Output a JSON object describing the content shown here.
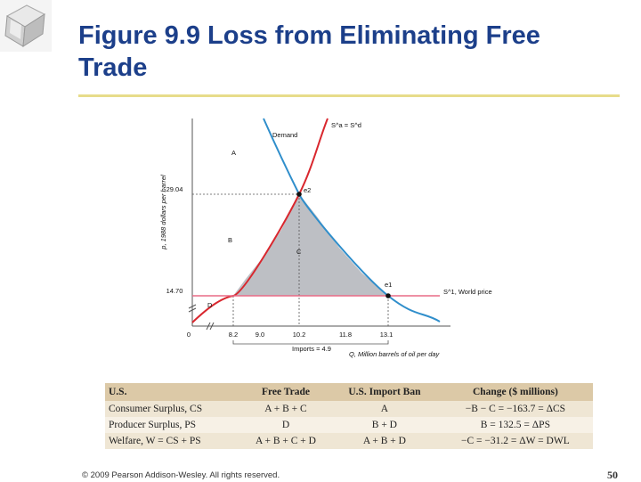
{
  "slide": {
    "title": "Figure 9.9 Loss from Eliminating Free\nTrade",
    "copyright": "© 2009 Pearson Addison-Wesley. All rights reserved.",
    "page_number": "50"
  },
  "chart_data": {
    "type": "line",
    "title": "",
    "ylabel": "p, 1988 dollars per barrel",
    "xlabel": "Q, Million barrels of oil per day",
    "y_ticks": [
      "29.04",
      "14.70",
      "0"
    ],
    "x_ticks": [
      "0",
      "8.2",
      "9.0",
      "10.2",
      "11.8",
      "13.1"
    ],
    "series": [
      {
        "name": "Demand",
        "color": "#2f8ecb"
      },
      {
        "name": "S^a = S^d",
        "color": "#d9272e"
      },
      {
        "name": "S^1, World price",
        "color": "#e86b86"
      }
    ],
    "world_price": 14.7,
    "ban_price": 29.04,
    "quantities": {
      "supply_at_world_price": 8.2,
      "ban_equilibrium": 10.2,
      "demand_at_world_price": 13.1
    },
    "tick_quantities": [
      8.2,
      9.0,
      10.2,
      11.8,
      13.1
    ],
    "points": [
      {
        "label": "e2",
        "x": 10.2,
        "y": 29.04
      },
      {
        "label": "e1",
        "x": 13.1,
        "y": 14.7
      }
    ],
    "area_labels": [
      "A",
      "B",
      "C",
      "D"
    ],
    "imports_label": "Imports = 4.9",
    "labels": {
      "demand": "Demand",
      "supply": "S^a = S^d",
      "world_price": "S^1, World price",
      "e2": "e2",
      "e1": "e1"
    }
  },
  "table": {
    "headers": [
      "U.S.",
      "Free Trade",
      "U.S. Import Ban",
      "Change ($ millions)"
    ],
    "rows": [
      [
        "Consumer Surplus, CS",
        "A + B + C",
        "A",
        "−B − C = −163.7 = ΔCS"
      ],
      [
        "Producer Surplus, PS",
        "D",
        "B + D",
        "B = 132.5 = ΔPS"
      ],
      [
        "Welfare, W = CS + PS",
        "A + B + C + D",
        "A + B + D",
        "−C = −31.2 = ΔW = DWL"
      ]
    ]
  }
}
